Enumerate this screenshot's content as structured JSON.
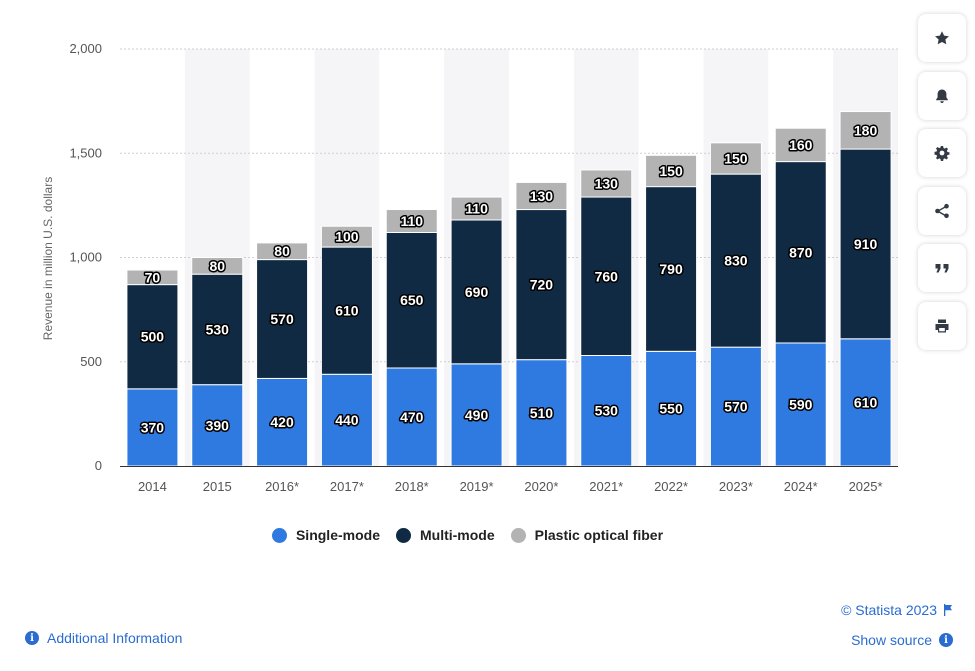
{
  "chart_data": {
    "type": "bar",
    "stacked": true,
    "categories": [
      "2014",
      "2015",
      "2016*",
      "2017*",
      "2018*",
      "2019*",
      "2020*",
      "2021*",
      "2022*",
      "2023*",
      "2024*",
      "2025*"
    ],
    "series": [
      {
        "name": "Single-mode",
        "color": "#2f7ae0",
        "values": [
          370,
          390,
          420,
          440,
          470,
          490,
          510,
          530,
          550,
          570,
          590,
          610
        ]
      },
      {
        "name": "Multi-mode",
        "color": "#102a43",
        "values": [
          500,
          530,
          570,
          610,
          650,
          690,
          720,
          760,
          790,
          830,
          870,
          910
        ]
      },
      {
        "name": "Plastic optical fiber",
        "color": "#b3b3b3",
        "values": [
          70,
          80,
          80,
          100,
          110,
          110,
          130,
          130,
          150,
          150,
          160,
          180
        ]
      }
    ],
    "ylabel": "Revenue in million U.S. dollars",
    "xlabel": "",
    "ylim": [
      0,
      2000
    ],
    "yticks": [
      0,
      500,
      1000,
      1500,
      2000
    ],
    "ytick_labels": [
      "0",
      "500",
      "1,000",
      "1,500",
      "2,000"
    ],
    "grid": true,
    "legend_position": "bottom"
  },
  "legend": [
    {
      "label": "Single-mode",
      "color": "#2f7ae0"
    },
    {
      "label": "Multi-mode",
      "color": "#102a43"
    },
    {
      "label": "Plastic optical fiber",
      "color": "#b3b3b3"
    }
  ],
  "toolbar": [
    {
      "name": "star-icon"
    },
    {
      "name": "bell-icon"
    },
    {
      "name": "gear-icon"
    },
    {
      "name": "share-icon"
    },
    {
      "name": "quote-icon"
    },
    {
      "name": "print-icon"
    }
  ],
  "footer": {
    "copyright": "© Statista 2023",
    "show_source": "Show source",
    "additional_info": "Additional Information"
  }
}
